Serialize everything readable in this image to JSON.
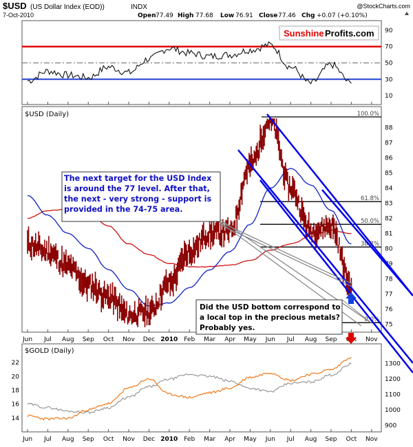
{
  "header": {
    "symbol": "$USD",
    "name": "(US Dollar Index (EOD))",
    "exchange": "INDX",
    "date": "7-Oct-2010",
    "open_label": "Open",
    "open": "77.49",
    "high_label": "High",
    "high": "77.68",
    "low_label": "Low",
    "low": "76.91",
    "close_label": "Close",
    "close": "77.46",
    "chg_label": "Chg",
    "chg": "+0.07 (+0.10%)",
    "credit": "@StockCharts.com"
  },
  "logo": {
    "part1": "Sunshine",
    "part2": "Profits.com"
  },
  "colors": {
    "price": "#8b0000",
    "ma_fast": "#1020c0",
    "ma_slow": "#d01010",
    "channel": "#0000ee",
    "rsi_upper": "#e00000",
    "rsi_lower": "#2040d0",
    "gold": "#f07818",
    "usd_overlay": "#909090",
    "annotation_text": "#1010c0",
    "arrow_up": "#1040e0",
    "arrow_down": "#e00000"
  },
  "rsi_panel": {
    "ticks": [
      "90",
      "70",
      "50",
      "30",
      "10"
    ],
    "upper_level": 70,
    "lower_level": 30
  },
  "usd_panel": {
    "title": "$USD (Daily)",
    "price_ticks": [
      "88",
      "87",
      "86",
      "85",
      "84",
      "83",
      "82",
      "81",
      "80",
      "79",
      "78",
      "77",
      "76",
      "75"
    ],
    "fib_levels": [
      {
        "label": "100.0%",
        "value": 88.7
      },
      {
        "label": "61.8%",
        "value": 83.1
      },
      {
        "label": "50.0%",
        "value": 81.6
      },
      {
        "label": "38.2%",
        "value": 80.1
      },
      {
        "label": "0.0%",
        "value": 75.1
      }
    ],
    "note_target": "The next target for the USD Index is around the 77 level. After that, the next - very strong - support is provided in the 74-75 area.",
    "note_question_line1": "Did the USD bottom correspond to",
    "note_question_line2": "a local top in the precious metals?",
    "note_question_line3": "Probably yes."
  },
  "gold_panel": {
    "title": "$GOLD (Daily)",
    "left_ticks": [
      "22",
      "20",
      "18",
      "16",
      "14"
    ],
    "right_ticks": [
      "1300",
      "1200",
      "1100",
      "1000",
      "900"
    ]
  },
  "x_axis": {
    "labels": [
      "Jun",
      "Jul",
      "Aug",
      "Sep",
      "Oct",
      "Nov",
      "Dec",
      "2010",
      "Feb",
      "Mar",
      "Apr",
      "May",
      "Jun",
      "Jul",
      "Aug",
      "Sep",
      "Oct",
      "Nov"
    ]
  },
  "chart_data": [
    {
      "type": "line",
      "title": "RSI",
      "ylim": [
        0,
        100
      ],
      "levels": [
        70,
        50,
        30
      ],
      "x": [
        "Jun",
        "Jul",
        "Aug",
        "Sep",
        "Oct",
        "Nov",
        "Dec",
        "2010",
        "Feb",
        "Mar",
        "Apr",
        "May",
        "Jun",
        "Jul",
        "Aug",
        "Sep",
        "Oct"
      ],
      "series": [
        {
          "values": [
            28,
            40,
            35,
            32,
            45,
            38,
            55,
            68,
            62,
            58,
            60,
            66,
            72,
            45,
            25,
            48,
            25
          ]
        }
      ]
    },
    {
      "type": "line",
      "title": "$USD (Daily)",
      "ylim": [
        74.7,
        88.7
      ],
      "x": [
        "Jun",
        "Jul",
        "Aug",
        "Sep",
        "Oct",
        "Nov",
        "Dec",
        "2010",
        "Feb",
        "Mar",
        "Apr",
        "May",
        "Jun",
        "Jul",
        "Aug",
        "Sep",
        "Oct"
      ],
      "series": [
        {
          "values": [
            80.3,
            79.8,
            78.8,
            77.6,
            76.8,
            75.6,
            75.8,
            77.7,
            79.8,
            81.0,
            81.1,
            85.5,
            88.5,
            84.0,
            81.2,
            81.5,
            77.5
          ]
        },
        {
          "values": [
            83.5,
            82.2,
            81.0,
            80.0,
            78.6,
            77.3,
            76.2,
            76.4,
            77.4,
            78.6,
            79.8,
            81.6,
            84.0,
            85.3,
            84.2,
            82.5,
            80.3
          ]
        },
        {
          "values": [
            82.0,
            82.5,
            82.6,
            82.3,
            81.5,
            80.3,
            79.6,
            79.0,
            78.8,
            78.8,
            78.9,
            79.2,
            79.9,
            80.3,
            80.8,
            81.2,
            81.0
          ]
        }
      ]
    },
    {
      "type": "line",
      "title": "$GOLD (Daily)",
      "x": [
        "Jun",
        "Jul",
        "Aug",
        "Sep",
        "Oct",
        "Nov",
        "Dec",
        "2010",
        "Feb",
        "Mar",
        "Apr",
        "May",
        "Jun",
        "Jul",
        "Aug",
        "Sep",
        "Oct"
      ],
      "series": [
        {
          "values": [
            960,
            940,
            945,
            1000,
            1040,
            1140,
            1200,
            1100,
            1080,
            1110,
            1140,
            1210,
            1240,
            1190,
            1230,
            1260,
            1340
          ]
        },
        {
          "values": [
            16.0,
            15.5,
            15.0,
            14.8,
            15.5,
            17.0,
            18.5,
            19.6,
            20.3,
            20.0,
            19.3,
            18.3,
            17.8,
            19.0,
            19.2,
            20.2,
            21.8
          ]
        }
      ]
    }
  ]
}
